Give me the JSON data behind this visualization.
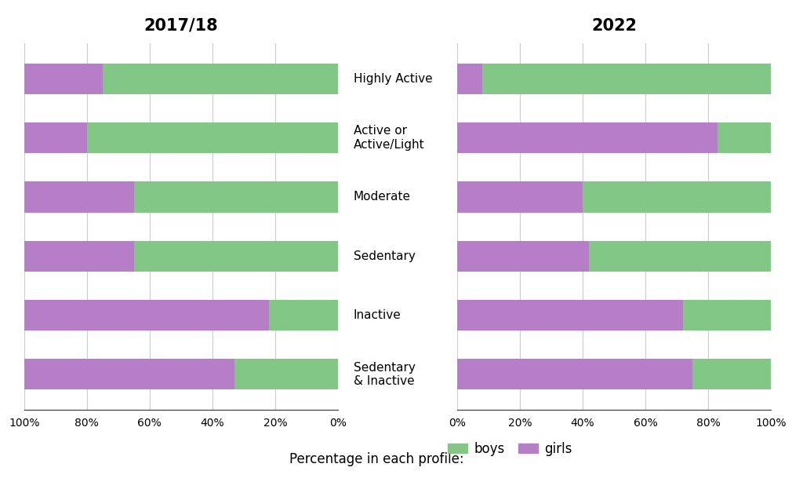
{
  "categories": [
    "Sedentary\n& Inactive",
    "Inactive",
    "Sedentary",
    "Moderate",
    "Active or\nActive/Light",
    "Highly Active"
  ],
  "left_title": "2017/18",
  "right_title": "2022",
  "left_boys": [
    33,
    22,
    65,
    65,
    80,
    75
  ],
  "left_girls": [
    67,
    78,
    35,
    35,
    20,
    25
  ],
  "right_girls": [
    75,
    72,
    42,
    40,
    83,
    8
  ],
  "right_boys": [
    25,
    28,
    58,
    60,
    17,
    92
  ],
  "color_boys": "#82c785",
  "color_girls": "#b57ec7",
  "background_color": "#ffffff",
  "bar_height": 0.52,
  "title_fontsize": 15,
  "label_fontsize": 11,
  "tick_fontsize": 10,
  "legend_fontsize": 12
}
